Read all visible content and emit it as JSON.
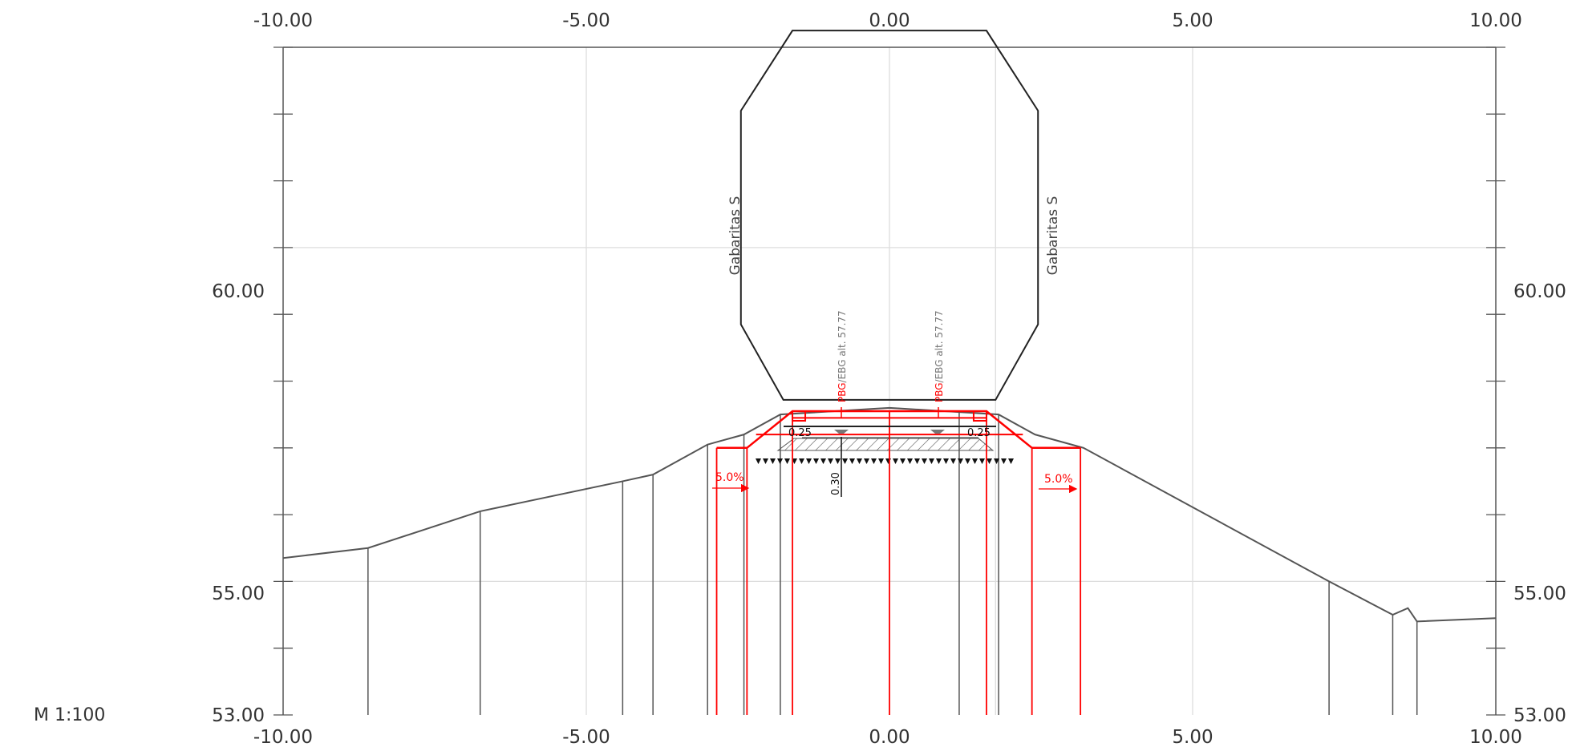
{
  "scale_label": "M 1:100",
  "x_axis": {
    "range": [
      -10,
      10
    ],
    "ticks": [
      {
        "value": -10,
        "label": "-10.00"
      },
      {
        "value": -5,
        "label": "-5.00"
      },
      {
        "value": 0,
        "label": "0.00"
      },
      {
        "value": 5,
        "label": "5.00"
      },
      {
        "value": 10,
        "label": "10.00"
      }
    ]
  },
  "y_axis": {
    "range": [
      53,
      64
    ],
    "ticks": [
      {
        "value": 60,
        "label": "60.00"
      },
      {
        "value": 55,
        "label": "55.00"
      },
      {
        "value": 53,
        "label": "53.00"
      }
    ]
  },
  "gabarit": {
    "label_left": "Gabaritas S",
    "label_right": "Gabaritas S",
    "outline": [
      [
        -1.6,
        63.25
      ],
      [
        1.6,
        63.25
      ],
      [
        2.45,
        62.05
      ],
      [
        2.45,
        58.85
      ],
      [
        1.75,
        57.72
      ],
      [
        -1.75,
        57.72
      ],
      [
        -2.45,
        58.85
      ],
      [
        -2.45,
        62.05
      ]
    ]
  },
  "ground_line": [
    [
      -10,
      55.35
    ],
    [
      -8.6,
      55.5
    ],
    [
      -6.75,
      56.05
    ],
    [
      -4.4,
      56.5
    ],
    [
      -3.9,
      56.6
    ],
    [
      -3.0,
      57.05
    ],
    [
      -2.4,
      57.2
    ],
    [
      -1.8,
      57.5
    ],
    [
      0,
      57.6
    ],
    [
      1.8,
      57.5
    ],
    [
      2.4,
      57.2
    ],
    [
      3.0,
      57.05
    ],
    [
      3.2,
      57.0
    ],
    [
      7.25,
      55.0
    ],
    [
      8.3,
      54.5
    ],
    [
      8.55,
      54.6
    ],
    [
      8.7,
      54.4
    ],
    [
      10,
      54.45
    ]
  ],
  "ground_verticals_x": [
    -8.6,
    -6.75,
    -4.4,
    -3.9,
    -3.0,
    -2.4,
    -1.8,
    1.15,
    1.8,
    7.25,
    8.3,
    8.7
  ],
  "formation_verticals_x": [
    -2.85,
    -2.35,
    -1.6,
    0,
    1.6,
    2.35,
    3.15
  ],
  "formation_line": [
    [
      -2.85,
      57.0
    ],
    [
      -2.35,
      57.0
    ],
    [
      -1.6,
      57.55
    ],
    [
      1.6,
      57.55
    ],
    [
      2.35,
      57.0
    ],
    [
      3.15,
      57.0
    ]
  ],
  "sleeper_line": [
    [
      -1.6,
      57.45
    ],
    [
      1.6,
      57.45
    ]
  ],
  "rails": [
    {
      "label_red": "PBG",
      "label_gray": "/EBG alt. 57.77",
      "x": -0.8
    },
    {
      "label_red": "PBG",
      "label_gray": "/EBG alt. 57.77",
      "x": 0.8
    }
  ],
  "dimensions": {
    "left": "0.25",
    "right": "0.25",
    "depth": "0.30"
  },
  "slopes": {
    "left": "5.0%",
    "right": "5.0%"
  },
  "colors": {
    "ground": "#555555",
    "grid": "#dddddd",
    "design": "#ff0000",
    "gabarit": "#222222",
    "hatch": "#555555"
  }
}
